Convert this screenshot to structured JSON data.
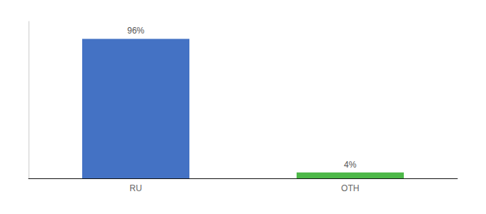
{
  "chart_data": {
    "type": "bar",
    "categories": [
      "RU",
      "OTH"
    ],
    "values": [
      96,
      4
    ],
    "value_labels": [
      "96%",
      "4%"
    ],
    "colors": [
      "#4472c4",
      "#4db848"
    ],
    "ylim": [
      0,
      108
    ],
    "grid": false,
    "data_labels": true,
    "tick_labels": "x"
  }
}
